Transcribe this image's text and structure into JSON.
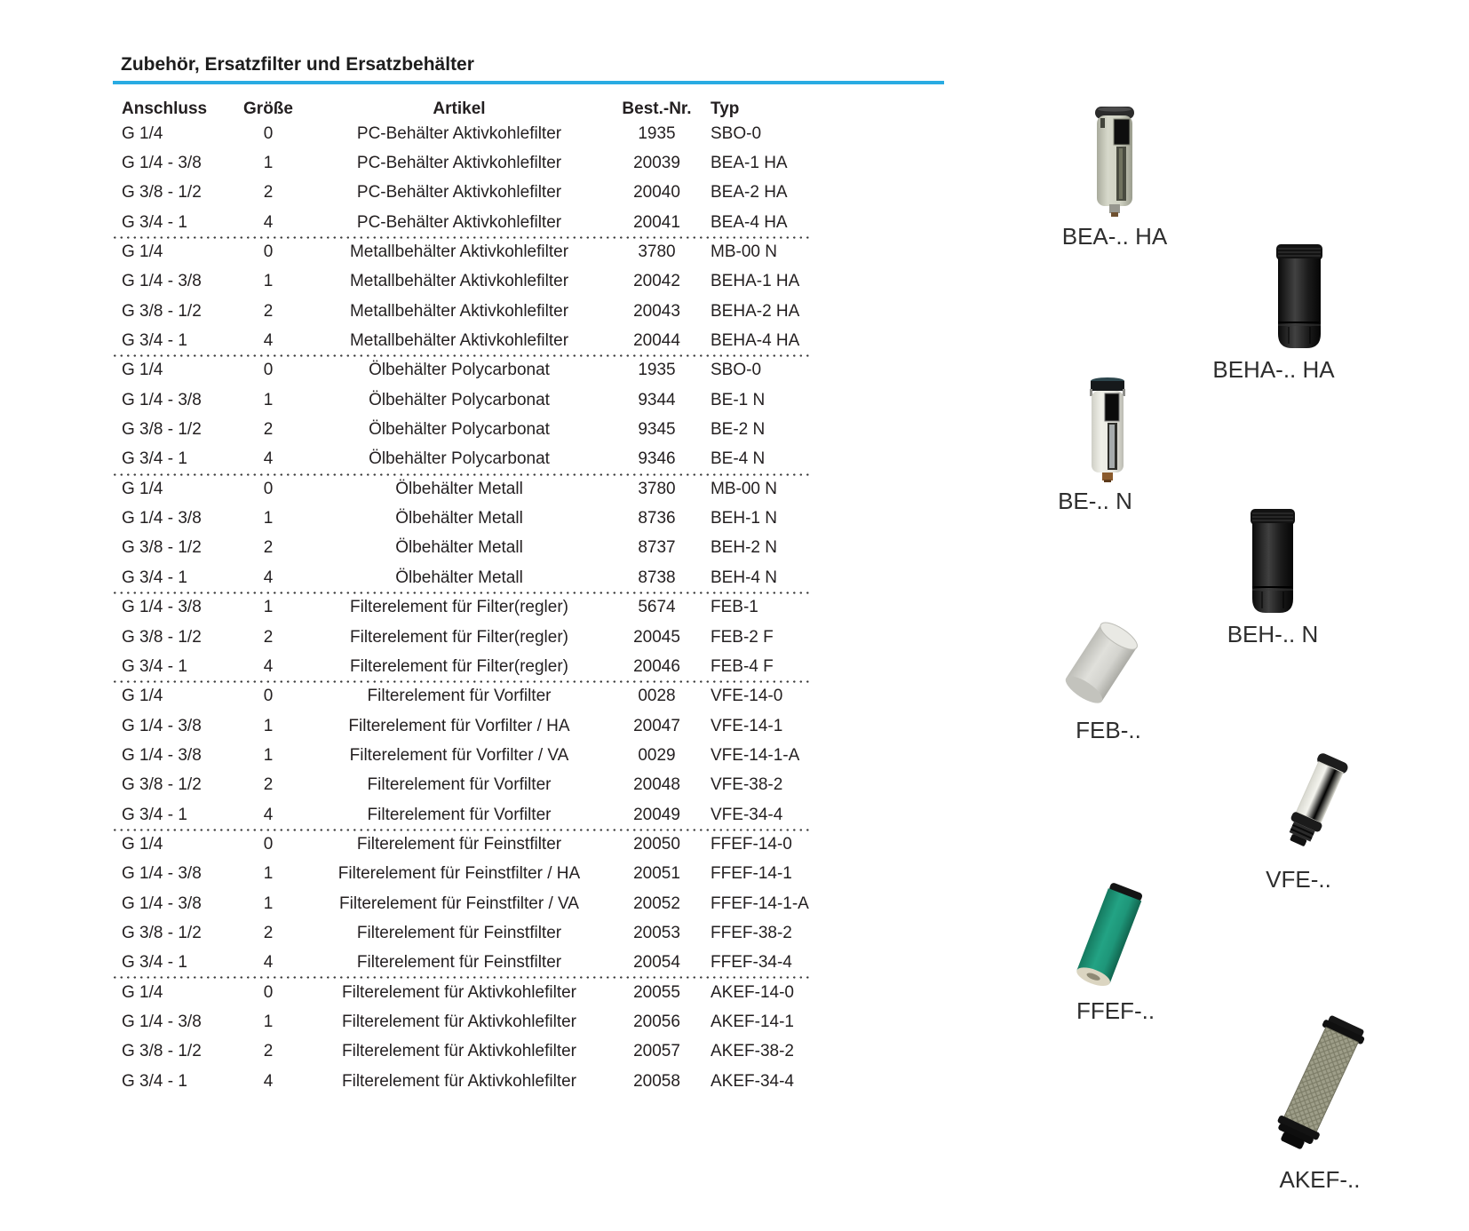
{
  "page": {
    "title": "Zubehör, Ersatzfilter und Ersatzbehälter",
    "accent_color": "#29ABE2",
    "text_color": "#231F20"
  },
  "table": {
    "headers": [
      "Anschluss",
      "Größe",
      "Artikel",
      "Best.-Nr.",
      "Typ"
    ],
    "groups": [
      [
        [
          "G 1/4",
          "0",
          "PC-Behälter Aktivkohlefilter",
          "1935",
          "SBO-0"
        ],
        [
          "G 1/4 - 3/8",
          "1",
          "PC-Behälter Aktivkohlefilter",
          "20039",
          "BEA-1 HA"
        ],
        [
          "G 3/8 - 1/2",
          "2",
          "PC-Behälter Aktivkohlefilter",
          "20040",
          "BEA-2 HA"
        ],
        [
          "G 3/4 - 1",
          "4",
          "PC-Behälter Aktivkohlefilter",
          "20041",
          "BEA-4 HA"
        ]
      ],
      [
        [
          "G 1/4",
          "0",
          "Metallbehälter Aktivkohlefilter",
          "3780",
          "MB-00 N"
        ],
        [
          "G 1/4 - 3/8",
          "1",
          "Metallbehälter Aktivkohlefilter",
          "20042",
          "BEHA-1 HA"
        ],
        [
          "G 3/8 - 1/2",
          "2",
          "Metallbehälter Aktivkohlefilter",
          "20043",
          "BEHA-2 HA"
        ],
        [
          "G 3/4 - 1",
          "4",
          "Metallbehälter Aktivkohlefilter",
          "20044",
          "BEHA-4 HA"
        ]
      ],
      [
        [
          "G 1/4",
          "0",
          "Ölbehälter Polycarbonat",
          "1935",
          "SBO-0"
        ],
        [
          "G 1/4 - 3/8",
          "1",
          "Ölbehälter Polycarbonat",
          "9344",
          "BE-1 N"
        ],
        [
          "G 3/8 - 1/2",
          "2",
          "Ölbehälter Polycarbonat",
          "9345",
          "BE-2 N"
        ],
        [
          "G 3/4 - 1",
          "4",
          "Ölbehälter Polycarbonat",
          "9346",
          "BE-4 N"
        ]
      ],
      [
        [
          "G 1/4",
          "0",
          "Ölbehälter Metall",
          "3780",
          "MB-00 N"
        ],
        [
          "G 1/4 - 3/8",
          "1",
          "Ölbehälter Metall",
          "8736",
          "BEH-1 N"
        ],
        [
          "G 3/8 - 1/2",
          "2",
          "Ölbehälter Metall",
          "8737",
          "BEH-2 N"
        ],
        [
          "G 3/4 - 1",
          "4",
          "Ölbehälter Metall",
          "8738",
          "BEH-4 N"
        ]
      ],
      [
        [
          "G 1/4 - 3/8",
          "1",
          "Filterelement für Filter(regler)",
          "5674",
          "FEB-1"
        ],
        [
          "G 3/8 - 1/2",
          "2",
          "Filterelement für Filter(regler)",
          "20045",
          "FEB-2 F"
        ],
        [
          "G 3/4 - 1",
          "4",
          "Filterelement für Filter(regler)",
          "20046",
          "FEB-4 F"
        ]
      ],
      [
        [
          "G 1/4",
          "0",
          "Filterelement für Vorfilter",
          "0028",
          "VFE-14-0"
        ],
        [
          "G 1/4 - 3/8",
          "1",
          "Filterelement für Vorfilter / HA",
          "20047",
          "VFE-14-1"
        ],
        [
          "G 1/4 - 3/8",
          "1",
          "Filterelement für Vorfilter / VA",
          "0029",
          "VFE-14-1-A"
        ],
        [
          "G 3/8 - 1/2",
          "2",
          "Filterelement für Vorfilter",
          "20048",
          "VFE-38-2"
        ],
        [
          "G 3/4 - 1",
          "4",
          "Filterelement für Vorfilter",
          "20049",
          "VFE-34-4"
        ]
      ],
      [
        [
          "G 1/4",
          "0",
          "Filterelement für Feinstfilter",
          "20050",
          "FFEF-14-0"
        ],
        [
          "G 1/4 - 3/8",
          "1",
          "Filterelement für Feinstfilter / HA",
          "20051",
          "FFEF-14-1"
        ],
        [
          "G 1/4 - 3/8",
          "1",
          "Filterelement für Feinstfilter / VA",
          "20052",
          "FFEF-14-1-A"
        ],
        [
          "G 3/8 - 1/2",
          "2",
          "Filterelement für Feinstfilter",
          "20053",
          "FFEF-38-2"
        ],
        [
          "G 3/4 - 1",
          "4",
          "Filterelement für Feinstfilter",
          "20054",
          "FFEF-34-4"
        ]
      ],
      [
        [
          "G 1/4",
          "0",
          "Filterelement für Aktivkohlefilter",
          "20055",
          "AKEF-14-0"
        ],
        [
          "G 1/4 - 3/8",
          "1",
          "Filterelement für Aktivkohlefilter",
          "20056",
          "AKEF-14-1"
        ],
        [
          "G 3/8 - 1/2",
          "2",
          "Filterelement für Aktivkohlefilter",
          "20057",
          "AKEF-38-2"
        ],
        [
          "G 3/4 - 1",
          "4",
          "Filterelement für Aktivkohlefilter",
          "20058",
          "AKEF-34-4"
        ]
      ]
    ]
  },
  "products": [
    {
      "label": "BEA-.. HA",
      "body_color": "#CDCFC0"
    },
    {
      "label": "BEHA-.. HA",
      "body_color": "#1A1A1A"
    },
    {
      "label": "BE-.. N",
      "body_color": "#E9E9E2"
    },
    {
      "label": "BEH-.. N",
      "body_color": "#1A1A1A"
    },
    {
      "label": "FEB-..",
      "body_color": "#D6D6D1"
    },
    {
      "label": "VFE-..",
      "body_color": "#F0F0EA"
    },
    {
      "label": "FFEF-..",
      "body_color": "#1E9679"
    },
    {
      "label": "AKEF-..",
      "body_color": "#9E9E89"
    }
  ]
}
